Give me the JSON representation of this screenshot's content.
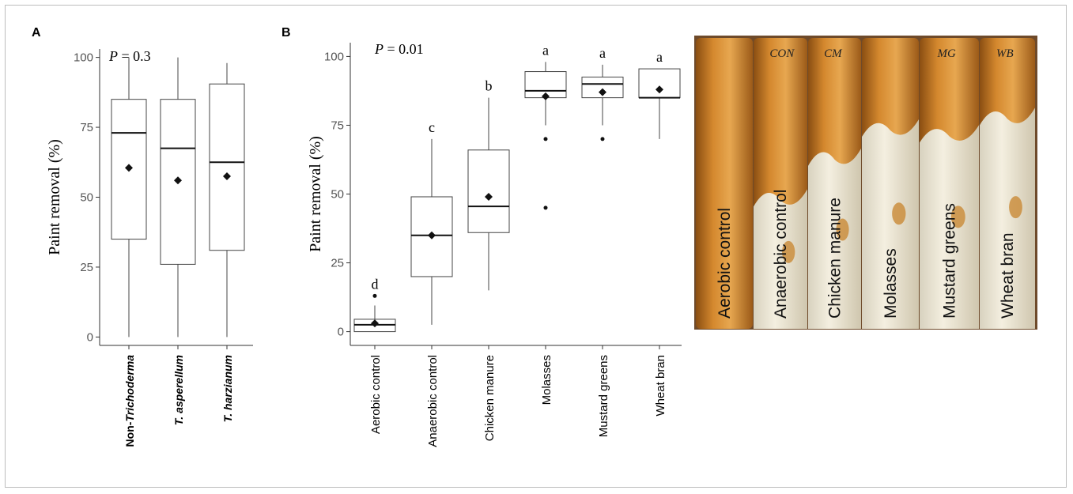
{
  "panel_labels": [
    "A",
    "B"
  ],
  "photo": {
    "labels": [
      "Aerobic control",
      "Anaerobic control",
      "Chicken manure",
      "Molasses",
      "Mustard greens",
      "Wheat bran"
    ],
    "handwriting": [
      "",
      "CON",
      "CM",
      "",
      "MG",
      "WB"
    ]
  },
  "chart_data": [
    {
      "type": "box",
      "panel": "A",
      "annotation": "P = 0.3",
      "ylabel": "Paint removal (%)",
      "ylim": [
        -3,
        103
      ],
      "yticks": [
        0,
        25,
        50,
        75,
        100
      ],
      "categories": [
        "Non-Trichoderma",
        "T. asperellum",
        "T. harzianum"
      ],
      "category_parts": [
        [
          {
            "t": "Non-",
            "i": false
          },
          {
            "t": "Trichoderma",
            "i": true
          }
        ],
        [
          {
            "t": "T. asperellum",
            "i": true
          }
        ],
        [
          {
            "t": "T. harzianum",
            "i": true
          }
        ]
      ],
      "boxes": [
        {
          "min": 0,
          "q1": 35,
          "median": 73,
          "q3": 85,
          "max": 100,
          "mean": 60.5,
          "outliers": []
        },
        {
          "min": 0,
          "q1": 26,
          "median": 67.5,
          "q3": 85,
          "max": 100,
          "mean": 56,
          "outliers": []
        },
        {
          "min": 0,
          "q1": 31,
          "median": 62.5,
          "q3": 90.5,
          "max": 98,
          "mean": 57.5,
          "outliers": []
        }
      ],
      "letters": []
    },
    {
      "type": "box",
      "panel": "B",
      "annotation": "P = 0.01",
      "ylabel": "Paint removal (%)",
      "ylim": [
        -5,
        105
      ],
      "yticks": [
        0,
        25,
        50,
        75,
        100
      ],
      "categories": [
        "Aerobic control",
        "Anaerobic control",
        "Chicken manure",
        "Molasses",
        "Mustard greens",
        "Wheat bran"
      ],
      "boxes": [
        {
          "min": 0,
          "q1": 0,
          "median": 2.5,
          "q3": 4.5,
          "max": 9.5,
          "mean": 3,
          "outliers": [
            13
          ]
        },
        {
          "min": 2.5,
          "q1": 20,
          "median": 35,
          "q3": 49,
          "max": 70,
          "mean": 35,
          "outliers": []
        },
        {
          "min": 15,
          "q1": 36,
          "median": 45.5,
          "q3": 66,
          "max": 85,
          "mean": 49,
          "outliers": []
        },
        {
          "min": 75,
          "q1": 85,
          "median": 87.5,
          "q3": 94.5,
          "max": 98,
          "mean": 85.5,
          "outliers": [
            70,
            45
          ]
        },
        {
          "min": 75,
          "q1": 85,
          "median": 90,
          "q3": 92.5,
          "max": 97,
          "mean": 87,
          "outliers": [
            70
          ]
        },
        {
          "min": 70,
          "q1": 85,
          "median": 85,
          "q3": 95.5,
          "max": 95.5,
          "mean": 88,
          "outliers": []
        }
      ],
      "letters": [
        "d",
        "c",
        "b",
        "a",
        "a",
        "a"
      ]
    }
  ]
}
